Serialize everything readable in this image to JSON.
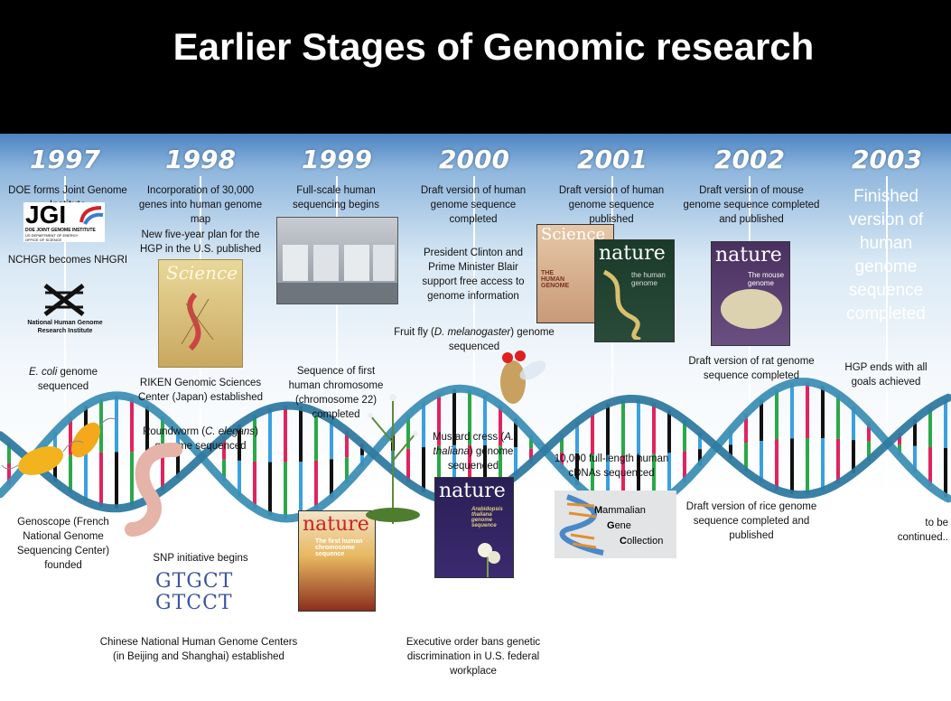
{
  "title": "Earlier Stages of Genomic research",
  "years": [
    "1997",
    "1998",
    "1999",
    "2000",
    "2001",
    "2002",
    "2003"
  ],
  "logos": {
    "jgi": "JGI",
    "jgi_sub": "DOE JOINT GENOME INSTITUTE",
    "jgi_sub2": "US DEPARTMENT OF ENERGY",
    "jgi_sub3": "OFFICE OF SCIENCE",
    "nhgri": "National Human Genome Research Institute",
    "mgc_m": "ammalian",
    "mgc_g": "ene",
    "mgc_c": "ollection"
  },
  "covers": {
    "science1998": "Science",
    "nature1999": "nature",
    "nature1999_sub": "The first human chromosome sequence",
    "science2001": "Science",
    "science2001_sub": "THE HUMAN GENOME",
    "nature2001": "nature",
    "nature2001_sub": "the human genome",
    "nature2000": "nature",
    "nature2000_sub": "Arabidopsis thaliana genome sequence",
    "nature2002": "nature",
    "nature2002_sub": "The mouse genome"
  },
  "sequence": {
    "line1": "GTGCT",
    "line2": "GTCCT"
  },
  "events": {
    "e1997a": "DOE forms Joint Genome Institute",
    "e1997b": "NCHGR becomes NHGRI",
    "e1997c1": "E. coli",
    "e1997c2": " genome sequenced",
    "e1997d": "Genoscope (French National Genome Sequencing Center) founded",
    "e1998a": "Incorporation of 30,000 genes into human genome map",
    "e1998b": "New five-year plan for the HGP in the U.S. published",
    "e1998c": "RIKEN Genomic Sciences Center (Japan) established",
    "e1998d1": "Roundworm (",
    "e1998d2": "C. elegans",
    "e1998d3": ") genome sequenced",
    "e1998e": "SNP initiative begins",
    "e1998f": "Chinese National Human Genome Centers (in Beijing and Shanghai) established",
    "e1999a": "Full-scale human sequencing begins",
    "e1999b": "Sequence of first human chromosome (chromosome 22) completed",
    "e2000a": "Draft version of human genome sequence completed",
    "e2000b": "President Clinton and Prime Minister Blair support free access to genome information",
    "e2000c1": "Fruit fly (",
    "e2000c2": "D. melanogaster",
    "e2000c3": ") genome sequenced",
    "e2000d1": "Mustard cress (",
    "e2000d2": "A. thaliana",
    "e2000d3": ") genome sequenced",
    "e2000e": "Executive order bans genetic discrimination in U.S. federal workplace",
    "e2001a": "Draft version of human genome sequence published",
    "e2001b": "10,000 full-length human cDNAs sequenced",
    "e2002a": "Draft version of mouse genome sequence completed and published",
    "e2002b": "Draft version of rat genome sequence completed",
    "e2002c": "Draft version of rice genome sequence completed and published",
    "e2003a": "Finished version of human genome sequence completed",
    "e2003b": "HGP ends with all goals achieved",
    "e2003c": "to be continued.."
  }
}
